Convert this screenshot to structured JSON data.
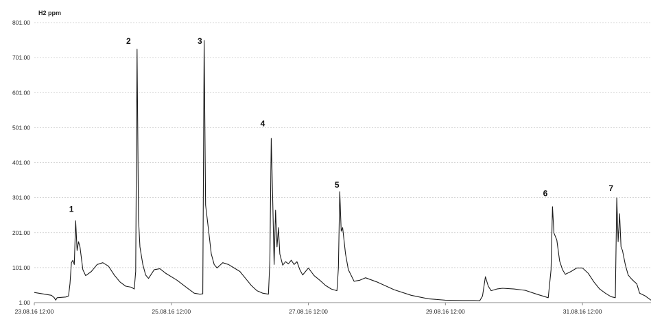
{
  "chart_data": {
    "type": "line",
    "title": "",
    "xlabel": "",
    "ylabel": "H2 ppm",
    "ylim": [
      1,
      801
    ],
    "y_ticks": [
      "1.00",
      "101.00",
      "201.00",
      "301.00",
      "401.00",
      "501.00",
      "601.00",
      "701.00",
      "801.00"
    ],
    "x_range_days": [
      "23.08.16 12:00",
      "01.09.16 12:00"
    ],
    "x_ticks": [
      "23.08.16 12:00",
      "25.08.16 12:00",
      "27.08.16 12:00",
      "29.08.16 12:00",
      "31.08.16 12:00"
    ],
    "grid": true,
    "legend": "none",
    "annotations": [
      {
        "label": "1",
        "x": "24.08.16 01:00",
        "y": 260
      },
      {
        "label": "2",
        "x": "24.08.16 21:00",
        "y": 740
      },
      {
        "label": "3",
        "x": "25.08.16 22:00",
        "y": 740
      },
      {
        "label": "4",
        "x": "26.08.16 20:00",
        "y": 505
      },
      {
        "label": "5",
        "x": "27.08.16 22:00",
        "y": 330
      },
      {
        "label": "6",
        "x": "30.08.16 23:00",
        "y": 305
      },
      {
        "label": "7",
        "x": "31.08.16 22:00",
        "y": 320
      }
    ],
    "series": [
      {
        "color": "#1a1a1a",
        "points": [
          [
            "23.08.16 12:00",
            30
          ],
          [
            "23.08.16 18:00",
            22
          ],
          [
            "23.08.16 19:00",
            15
          ],
          [
            "23.08.16 19:30",
            8
          ],
          [
            "23.08.16 20:00",
            15
          ],
          [
            "23.08.16 23:00",
            17
          ],
          [
            "24.08.16 00:00",
            20
          ],
          [
            "24.08.16 00:30",
            55
          ],
          [
            "24.08.16 01:00",
            115
          ],
          [
            "24.08.16 01:30",
            122
          ],
          [
            "24.08.16 02:00",
            110
          ],
          [
            "24.08.16 02:30",
            235
          ],
          [
            "24.08.16 03:00",
            150
          ],
          [
            "24.08.16 03:30",
            175
          ],
          [
            "24.08.16 04:00",
            160
          ],
          [
            "24.08.16 05:00",
            95
          ],
          [
            "24.08.16 06:00",
            78
          ],
          [
            "24.08.16 08:00",
            90
          ],
          [
            "24.08.16 10:00",
            110
          ],
          [
            "24.08.16 12:00",
            115
          ],
          [
            "24.08.16 14:00",
            105
          ],
          [
            "24.08.16 16:00",
            80
          ],
          [
            "24.08.16 18:00",
            60
          ],
          [
            "24.08.16 20:00",
            48
          ],
          [
            "24.08.16 22:00",
            45
          ],
          [
            "24.08.16 23:00",
            40
          ],
          [
            "24.08.16 23:30",
            90
          ],
          [
            "25.08.16 00:00",
            725
          ],
          [
            "25.08.16 00:30",
            240
          ],
          [
            "25.08.16 01:00",
            160
          ],
          [
            "25.08.16 02:00",
            110
          ],
          [
            "25.08.16 03:00",
            80
          ],
          [
            "25.08.16 04:00",
            70
          ],
          [
            "25.08.16 06:00",
            95
          ],
          [
            "25.08.16 08:00",
            98
          ],
          [
            "25.08.16 10:00",
            85
          ],
          [
            "25.08.16 14:00",
            65
          ],
          [
            "25.08.16 18:00",
            40
          ],
          [
            "25.08.16 20:00",
            28
          ],
          [
            "25.08.16 22:00",
            25
          ],
          [
            "25.08.16 23:00",
            26
          ],
          [
            "25.08.16 23:30",
            750
          ],
          [
            "26.08.16 00:00",
            280
          ],
          [
            "26.08.16 01:00",
            210
          ],
          [
            "26.08.16 02:00",
            140
          ],
          [
            "26.08.16 03:00",
            110
          ],
          [
            "26.08.16 04:00",
            100
          ],
          [
            "26.08.16 06:00",
            115
          ],
          [
            "26.08.16 08:00",
            110
          ],
          [
            "26.08.16 10:00",
            100
          ],
          [
            "26.08.16 12:00",
            90
          ],
          [
            "26.08.16 14:00",
            70
          ],
          [
            "26.08.16 16:00",
            50
          ],
          [
            "26.08.16 18:00",
            35
          ],
          [
            "26.08.16 20:00",
            28
          ],
          [
            "26.08.16 22:00",
            25
          ],
          [
            "26.08.16 22:30",
            120
          ],
          [
            "26.08.16 23:00",
            470
          ],
          [
            "26.08.16 23:30",
            300
          ],
          [
            "27.08.16 00:00",
            110
          ],
          [
            "27.08.16 00:30",
            265
          ],
          [
            "27.08.16 01:00",
            160
          ],
          [
            "27.08.16 01:30",
            215
          ],
          [
            "27.08.16 02:00",
            140
          ],
          [
            "27.08.16 03:00",
            108
          ],
          [
            "27.08.16 04:00",
            118
          ],
          [
            "27.08.16 05:00",
            112
          ],
          [
            "27.08.16 06:00",
            122
          ],
          [
            "27.08.16 07:00",
            110
          ],
          [
            "27.08.16 08:00",
            118
          ],
          [
            "27.08.16 09:00",
            95
          ],
          [
            "27.08.16 10:00",
            80
          ],
          [
            "27.08.16 12:00",
            100
          ],
          [
            "27.08.16 14:00",
            78
          ],
          [
            "27.08.16 16:00",
            65
          ],
          [
            "27.08.16 18:00",
            50
          ],
          [
            "27.08.16 20:00",
            40
          ],
          [
            "27.08.16 22:00",
            35
          ],
          [
            "27.08.16 22:30",
            100
          ],
          [
            "27.08.16 23:00",
            318
          ],
          [
            "27.08.16 23:30",
            205
          ],
          [
            "28.08.16 00:00",
            215
          ],
          [
            "28.08.16 01:00",
            140
          ],
          [
            "28.08.16 02:00",
            95
          ],
          [
            "28.08.16 04:00",
            62
          ],
          [
            "28.08.16 06:00",
            65
          ],
          [
            "28.08.16 08:00",
            72
          ],
          [
            "28.08.16 12:00",
            60
          ],
          [
            "28.08.16 18:00",
            38
          ],
          [
            "29.08.16 00:00",
            22
          ],
          [
            "29.08.16 06:00",
            12
          ],
          [
            "29.08.16 12:00",
            8
          ],
          [
            "29.08.16 18:00",
            7
          ],
          [
            "29.08.16 22:00",
            7
          ],
          [
            "30.08.16 00:00",
            6
          ],
          [
            "30.08.16 01:00",
            20
          ],
          [
            "30.08.16 02:00",
            75
          ],
          [
            "30.08.16 03:00",
            48
          ],
          [
            "30.08.16 04:00",
            35
          ],
          [
            "30.08.16 06:00",
            40
          ],
          [
            "30.08.16 08:00",
            42
          ],
          [
            "30.08.16 12:00",
            40
          ],
          [
            "30.08.16 16:00",
            36
          ],
          [
            "30.08.16 20:00",
            25
          ],
          [
            "31.08.16 00:00",
            15
          ],
          [
            "31.08.16 01:00",
            95
          ],
          [
            "31.08.16 01:30",
            275
          ],
          [
            "31.08.16 02:00",
            200
          ],
          [
            "31.08.16 03:00",
            180
          ],
          [
            "31.08.16 04:00",
            120
          ],
          [
            "31.08.16 05:00",
            95
          ],
          [
            "31.08.16 06:00",
            82
          ],
          [
            "31.08.16 08:00",
            90
          ],
          [
            "31.08.16 10:00",
            100
          ],
          [
            "31.08.16 12:00",
            100
          ],
          [
            "31.08.16 14:00",
            85
          ],
          [
            "31.08.16 16:00",
            60
          ],
          [
            "31.08.16 18:00",
            40
          ],
          [
            "31.08.16 20:00",
            28
          ],
          [
            "31.08.16 22:00",
            18
          ],
          [
            "31.08.16 23:30",
            15
          ],
          [
            "01.09.16 00:00",
            300
          ],
          [
            "01.09.16 00:30",
            175
          ],
          [
            "01.09.16 01:00",
            255
          ],
          [
            "01.09.16 01:30",
            160
          ],
          [
            "01.09.16 02:00",
            150
          ],
          [
            "01.09.16 03:00",
            110
          ],
          [
            "01.09.16 04:00",
            80
          ],
          [
            "01.09.16 05:00",
            70
          ],
          [
            "01.09.16 06:00",
            62
          ],
          [
            "01.09.16 07:00",
            55
          ],
          [
            "01.09.16 08:00",
            28
          ],
          [
            "01.09.16 10:00",
            20
          ],
          [
            "01.09.16 12:00",
            8
          ]
        ]
      }
    ]
  }
}
